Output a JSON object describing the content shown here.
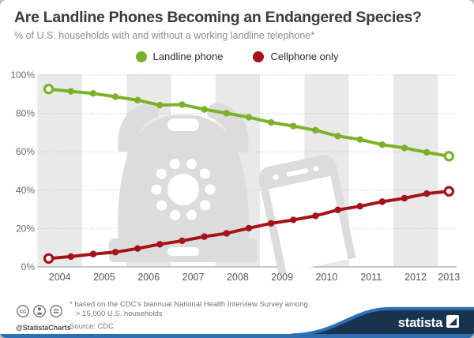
{
  "page": {
    "title": "Are Landline Phones Becoming an Endangered Species?",
    "subtitle": "% of U.S. households with and without a working landline telephone*"
  },
  "legend": [
    {
      "label": "Landline phone",
      "color": "#7cb228"
    },
    {
      "label": "Cellphone only",
      "color": "#a41319"
    }
  ],
  "chart_data": {
    "type": "line",
    "x_periods": [
      "2004 H1",
      "2004 H2",
      "2005 H1",
      "2005 H2",
      "2006 H1",
      "2006 H2",
      "2007 H1",
      "2007 H2",
      "2008 H1",
      "2008 H2",
      "2009 H1",
      "2009 H2",
      "2010 H1",
      "2010 H2",
      "2011 H1",
      "2011 H2",
      "2012 H1",
      "2012 H2",
      "2013 H1"
    ],
    "year_labels": [
      "2004",
      "2005",
      "2006",
      "2007",
      "2008",
      "2009",
      "2010",
      "2011",
      "2012",
      "2013"
    ],
    "series": [
      {
        "name": "Landline phone",
        "color": "#7cb228",
        "values": [
          92.7,
          91.5,
          90.4,
          88.7,
          86.9,
          84.3,
          84.6,
          82.1,
          80.1,
          78.0,
          75.3,
          73.4,
          71.2,
          68.2,
          66.4,
          63.7,
          62.0,
          59.7,
          57.7
        ]
      },
      {
        "name": "Cellphone only",
        "color": "#a41319",
        "values": [
          4.4,
          5.4,
          6.7,
          7.7,
          9.6,
          11.8,
          13.6,
          15.8,
          17.5,
          20.2,
          22.7,
          24.5,
          26.6,
          29.7,
          31.6,
          34.0,
          35.8,
          38.2,
          39.4
        ]
      }
    ],
    "ylim": [
      0,
      100
    ],
    "yticks": [
      0,
      20,
      40,
      60,
      80,
      100
    ],
    "ytick_labels": [
      "0%",
      "20%",
      "40%",
      "60%",
      "80%",
      "100%"
    ],
    "grid": "horizontal-dotted",
    "legend_position": "top-center",
    "background": "alternating-gray-year-bands",
    "band_color": "#e9e9e9",
    "grid_color": "#c7c7c7",
    "axis_color": "#b5b5b5",
    "watermark_color": "#dcdcdc"
  },
  "footer": {
    "license_icons": [
      "cc-icon",
      "attribution-icon",
      "no-derivatives-icon"
    ],
    "handle": "@StatistaCharts",
    "footnote_line1": "* based on the CDC's biannual National Health Interview Survey among",
    "footnote_line2": "> 15,000 U.S. households",
    "source": "Source: CDC",
    "brand": "statista",
    "brand_navy": "#17334e",
    "accent_blue": "#2e6eb5"
  }
}
